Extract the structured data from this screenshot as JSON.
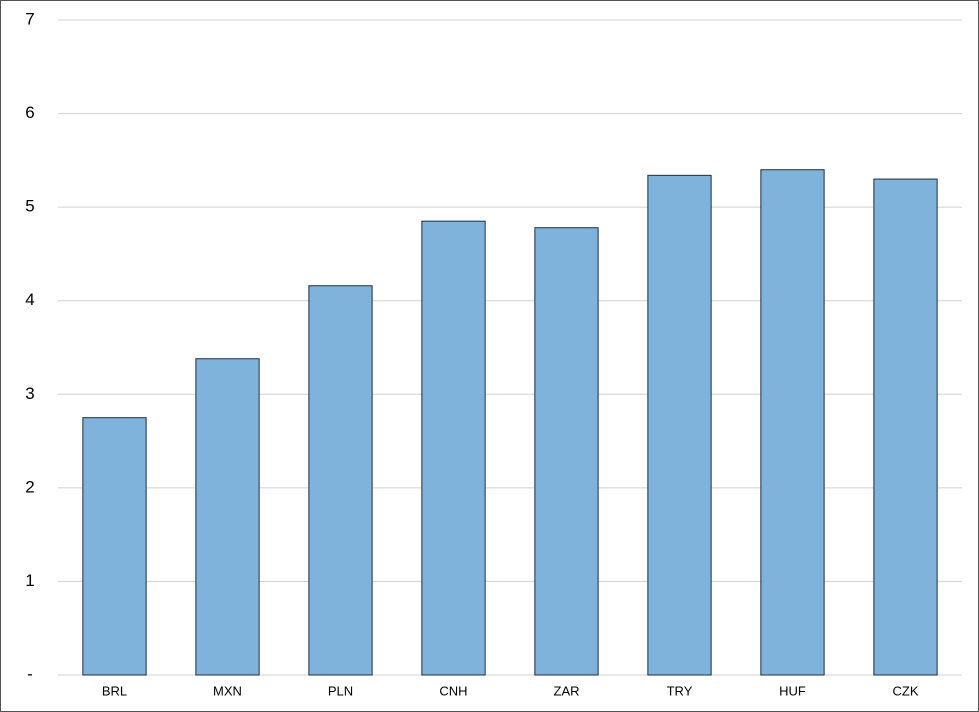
{
  "chart_data": {
    "type": "bar",
    "categories": [
      "BRL",
      "MXN",
      "PLN",
      "CNH",
      "ZAR",
      "TRY",
      "HUF",
      "CZK"
    ],
    "values": [
      2.75,
      3.38,
      4.16,
      4.85,
      4.78,
      5.34,
      5.4,
      5.3
    ],
    "color": "#7fb3dc",
    "ylim": [
      0,
      7
    ],
    "yticks": [
      {
        "value": 0,
        "label": "-"
      },
      1,
      2,
      3,
      4,
      5,
      6,
      7
    ],
    "grid": true
  }
}
